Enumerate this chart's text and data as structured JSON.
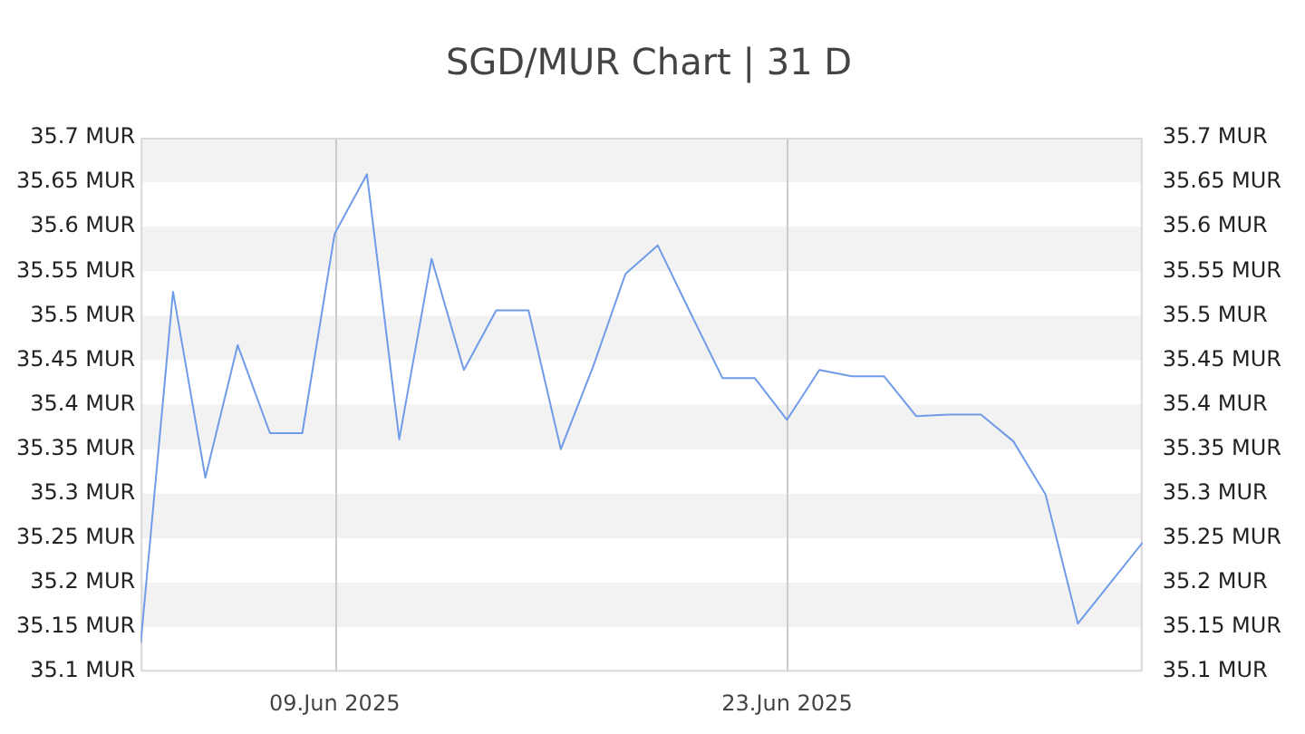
{
  "chart_data": {
    "type": "line",
    "title": "SGD/MUR Chart | 31 D",
    "x": [
      "2025-06-03",
      "2025-06-04",
      "2025-06-05",
      "2025-06-06",
      "2025-06-07",
      "2025-06-08",
      "2025-06-09",
      "2025-06-10",
      "2025-06-11",
      "2025-06-12",
      "2025-06-13",
      "2025-06-14",
      "2025-06-15",
      "2025-06-16",
      "2025-06-17",
      "2025-06-18",
      "2025-06-19",
      "2025-06-20",
      "2025-06-21",
      "2025-06-22",
      "2025-06-23",
      "2025-06-24",
      "2025-06-25",
      "2025-06-26",
      "2025-06-27",
      "2025-06-28",
      "2025-06-29",
      "2025-06-30",
      "2025-07-01",
      "2025-07-02",
      "2025-07-04"
    ],
    "series": [
      {
        "color": "#6f9be8",
        "values": [
          35.132,
          35.527,
          35.318,
          35.467,
          35.368,
          35.368,
          35.592,
          35.659,
          35.361,
          35.564,
          35.439,
          35.506,
          35.506,
          35.35,
          35.443,
          35.547,
          35.579,
          35.504,
          35.43,
          35.43,
          35.383,
          35.439,
          35.432,
          35.432,
          35.387,
          35.389,
          35.389,
          35.359,
          35.299,
          35.154,
          35.245
        ]
      }
    ],
    "xlim": [
      "2025-06-03",
      "2025-07-04"
    ],
    "xticks": [
      {
        "value": "2025-06-09",
        "label": "09.Jun 2025"
      },
      {
        "value": "2025-06-23",
        "label": "23.Jun 2025"
      }
    ],
    "ylim": [
      35.1,
      35.7
    ],
    "yticks": [
      {
        "value": 35.1,
        "label": "35.1 MUR"
      },
      {
        "value": 35.15,
        "label": "35.15 MUR"
      },
      {
        "value": 35.2,
        "label": "35.2 MUR"
      },
      {
        "value": 35.25,
        "label": "35.25 MUR"
      },
      {
        "value": 35.3,
        "label": "35.3 MUR"
      },
      {
        "value": 35.35,
        "label": "35.35 MUR"
      },
      {
        "value": 35.4,
        "label": "35.4 MUR"
      },
      {
        "value": 35.45,
        "label": "35.45 MUR"
      },
      {
        "value": 35.5,
        "label": "35.5 MUR"
      },
      {
        "value": 35.55,
        "label": "35.55 MUR"
      },
      {
        "value": 35.6,
        "label": "35.6 MUR"
      },
      {
        "value": 35.65,
        "label": "35.65 MUR"
      },
      {
        "value": 35.7,
        "label": "35.7 MUR"
      }
    ],
    "y2lim": [
      35.1,
      35.7
    ],
    "y2ticks": [
      {
        "value": 35.1,
        "label": "35.1 MUR"
      },
      {
        "value": 35.15,
        "label": "35.15 MUR"
      },
      {
        "value": 35.2,
        "label": "35.2 MUR"
      },
      {
        "value": 35.25,
        "label": "35.25 MUR"
      },
      {
        "value": 35.3,
        "label": "35.3 MUR"
      },
      {
        "value": 35.35,
        "label": "35.35 MUR"
      },
      {
        "value": 35.4,
        "label": "35.4 MUR"
      },
      {
        "value": 35.45,
        "label": "35.45 MUR"
      },
      {
        "value": 35.5,
        "label": "35.5 MUR"
      },
      {
        "value": 35.55,
        "label": "35.55 MUR"
      },
      {
        "value": 35.6,
        "label": "35.6 MUR"
      },
      {
        "value": 35.65,
        "label": "35.65 MUR"
      },
      {
        "value": 35.7,
        "label": "35.7 MUR"
      }
    ],
    "grid": true,
    "marker": "none",
    "line_style": "solid",
    "legend": false
  }
}
